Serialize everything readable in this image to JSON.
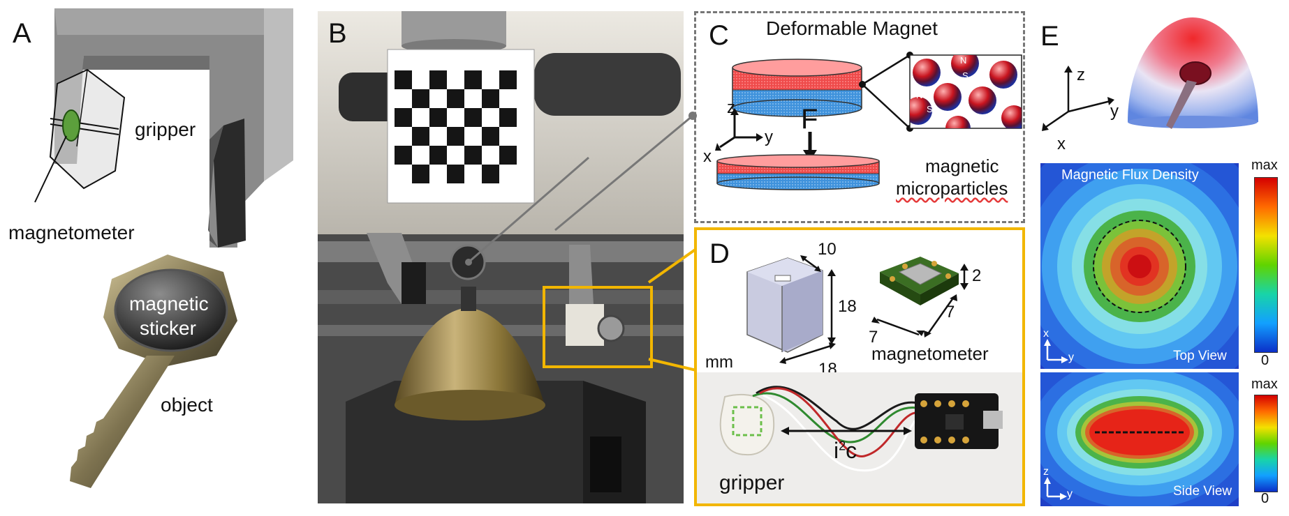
{
  "panels": {
    "a": {
      "letter": "A",
      "gripper_label": "gripper",
      "magnetometer_label": "magnetometer",
      "sticker_label_line1": "magnetic",
      "sticker_label_line2": "sticker",
      "object_label": "object"
    },
    "b": {
      "letter": "B"
    },
    "c": {
      "letter": "C",
      "title": "Deformable Magnet",
      "force_label": "F",
      "axis_z": "z",
      "axis_y": "y",
      "axis_x": "x",
      "particles_line1": "magnetic",
      "particles_line2": "microparticles",
      "pole_n": "N",
      "pole_s": "S"
    },
    "d": {
      "letter": "D",
      "unit": "mm",
      "dim_10": "10",
      "dim_18_v": "18",
      "dim_18_h": "18",
      "dim_2": "2",
      "dim_7_a": "7",
      "dim_7_b": "7",
      "magnetometer_label": "magnetometer",
      "gripper_label": "gripper",
      "bus_label": "i",
      "bus_sup": "2",
      "bus_suffix": "c"
    },
    "e": {
      "letter": "E",
      "axis_z": "z",
      "axis_y": "y",
      "axis_x": "x",
      "flux_title": "Magnetic Flux Density",
      "top_view_label": "Top View",
      "side_view_label": "Side View",
      "top_axis_x": "x",
      "top_axis_y": "y",
      "side_axis_z": "z",
      "side_axis_y": "y",
      "scale_max_1": "max",
      "scale_min_1": "0",
      "scale_max_2": "max",
      "scale_min_2": "0"
    }
  },
  "colors": {
    "accent_border": "#f2b600",
    "magnet_red": "#e8474a",
    "magnet_blue": "#3b8fd6",
    "dashed_gray": "#777777"
  },
  "icons": [
    "gripper-3d-render",
    "key-icon",
    "bell-object-photo",
    "checkerboard-target",
    "sensor-chip",
    "breakout-board"
  ]
}
